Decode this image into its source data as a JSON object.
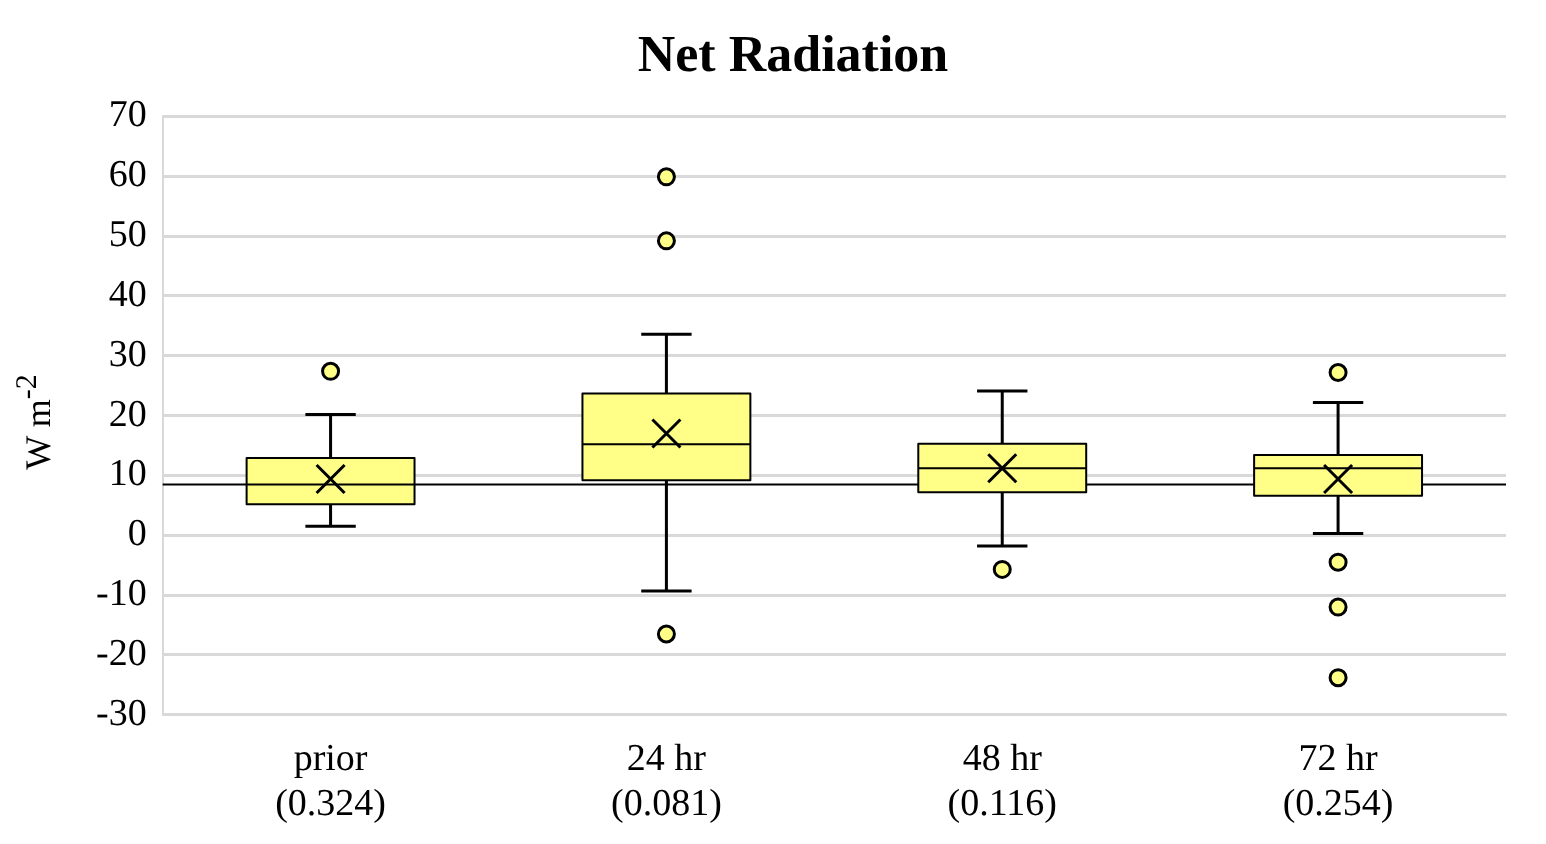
{
  "chart_data": {
    "type": "box",
    "title": "Net Radiation",
    "ylabel": "W m$^{-2}$",
    "categories": [
      "prior\n(0.324)",
      "24 hr\n(0.081)",
      "48 hr\n(0.116)",
      "72 hr\n(0.254)"
    ],
    "color": "#ffff88",
    "boxes": [
      {
        "low": 1.5,
        "q1": 5.2,
        "median": 8.5,
        "q3": 12.9,
        "high": 20.2,
        "mean": 9.4,
        "outliers": [
          27.4
        ]
      },
      {
        "low": -9.3,
        "q1": 9.2,
        "median": 15.2,
        "q3": 23.7,
        "high": 33.6,
        "mean": 17,
        "outliers": [
          59.9,
          49.2,
          -16.5
        ]
      },
      {
        "low": -1.8,
        "q1": 7.2,
        "median": 11.2,
        "q3": 15.3,
        "high": 24.1,
        "mean": 11.2,
        "outliers": [
          -5.7
        ]
      },
      {
        "low": 0.3,
        "q1": 6.6,
        "median": 11.2,
        "q3": 13.4,
        "high": 22.2,
        "mean": 9.4,
        "outliers": [
          27.2,
          -4.5,
          -12,
          -23.8
        ]
      }
    ],
    "ylim": [
      -30,
      70
    ],
    "yticks": [
      -30,
      -20,
      -10,
      0,
      10,
      20,
      30,
      40,
      50,
      60,
      70
    ],
    "ref_lines": [
      {
        "axis": "y",
        "value": 8.5,
        "color": "#000000"
      }
    ],
    "grid": "y",
    "legend": false
  }
}
